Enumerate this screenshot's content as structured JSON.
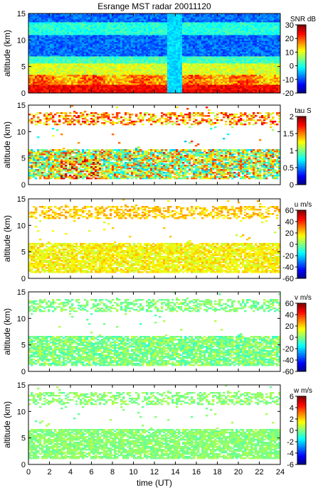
{
  "chart_data": [
    {
      "type": "heatmap",
      "title": "Esrange MST radar 20011120",
      "xlabel": "",
      "ylabel": "altitude (km)",
      "xlim": [
        0,
        24
      ],
      "ylim": [
        0,
        15
      ],
      "yticks": [
        0,
        5,
        10,
        15
      ],
      "colorbar": {
        "label": "SNR dB",
        "range": [
          -20,
          30
        ],
        "ticks": [
          -20,
          -10,
          0,
          10,
          20,
          30
        ]
      },
      "pattern": "snr"
    },
    {
      "type": "heatmap",
      "title": "",
      "xlabel": "",
      "ylabel": "altitude (km)",
      "xlim": [
        0,
        24
      ],
      "ylim": [
        0,
        15
      ],
      "yticks": [
        0,
        5,
        10,
        15
      ],
      "colorbar": {
        "label": "tau S",
        "range": [
          0,
          2
        ],
        "ticks": [
          0,
          0.5,
          1,
          1.5,
          2
        ]
      },
      "pattern": "tau"
    },
    {
      "type": "heatmap",
      "title": "",
      "xlabel": "",
      "ylabel": "altitude (km)",
      "xlim": [
        0,
        24
      ],
      "ylim": [
        0,
        15
      ],
      "yticks": [
        0,
        5,
        10,
        15
      ],
      "colorbar": {
        "label": "u m/s",
        "range": [
          -60,
          60
        ],
        "ticks": [
          -60,
          -40,
          -20,
          0,
          20,
          40,
          60
        ]
      },
      "pattern": "u"
    },
    {
      "type": "heatmap",
      "title": "",
      "xlabel": "",
      "ylabel": "altitude (km)",
      "xlim": [
        0,
        24
      ],
      "ylim": [
        0,
        15
      ],
      "yticks": [
        0,
        5,
        10,
        15
      ],
      "colorbar": {
        "label": "v m/s",
        "range": [
          -60,
          60
        ],
        "ticks": [
          -60,
          -40,
          -20,
          0,
          20,
          40,
          60
        ]
      },
      "pattern": "v"
    },
    {
      "type": "heatmap",
      "title": "",
      "xlabel": "time (UT)",
      "ylabel": "altitude (km)",
      "xlim": [
        0,
        24
      ],
      "ylim": [
        0,
        15
      ],
      "yticks": [
        0,
        5,
        10,
        15
      ],
      "xticks": [
        0,
        2,
        4,
        6,
        8,
        10,
        12,
        14,
        16,
        18,
        20,
        22,
        24
      ],
      "colorbar": {
        "label": "w m/s",
        "range": [
          -6,
          6
        ],
        "ticks": [
          -6,
          -4,
          -2,
          0,
          2,
          4,
          6
        ]
      },
      "pattern": "w"
    }
  ]
}
